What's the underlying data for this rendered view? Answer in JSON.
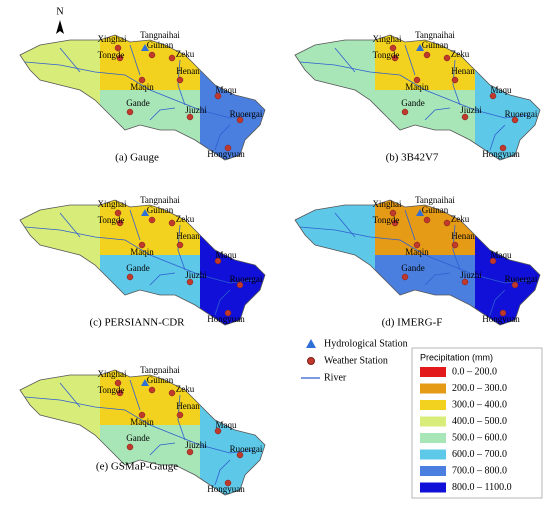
{
  "north": "N",
  "stations": [
    "Xinghai",
    "Tangnaihai",
    "Guinan",
    "Tongde",
    "Zeku",
    "Henan",
    "Maqin",
    "Maqu",
    "Gande",
    "Jiuzhi",
    "Ruoergai",
    "Hongyuan"
  ],
  "panels": [
    {
      "caption": "(a) Gauge"
    },
    {
      "caption": "(b) 3B42V7"
    },
    {
      "caption": "(c) PERSIANN-CDR"
    },
    {
      "caption": "(d) IMERG-F"
    },
    {
      "caption": "(e) GSMaP-Gauge"
    }
  ],
  "legend": {
    "hydrological_station": "Hydrological Station",
    "weather_station": "Weather Station",
    "river": "River",
    "title": "Precipitation (mm)",
    "classes": [
      {
        "label": "0.0 – 200.0",
        "color": "#e31a1c"
      },
      {
        "label": "200.0 – 300.0",
        "color": "#e69b16"
      },
      {
        "label": "300.0 – 400.0",
        "color": "#f2d21e"
      },
      {
        "label": "400.0 – 500.0",
        "color": "#d8ec7a"
      },
      {
        "label": "500.0 – 600.0",
        "color": "#a8e6b8"
      },
      {
        "label": "600.0 – 700.0",
        "color": "#5ec8e8"
      },
      {
        "label": "700.0 – 800.0",
        "color": "#4a7fe0"
      },
      {
        "label": "800.0 – 1100.0",
        "color": "#1010d8"
      }
    ]
  }
}
